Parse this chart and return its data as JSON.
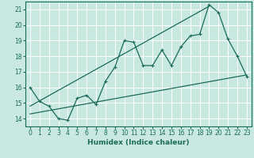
{
  "title": "",
  "xlabel": "Humidex (Indice chaleur)",
  "xlim": [
    -0.5,
    23.5
  ],
  "ylim": [
    13.5,
    21.5
  ],
  "yticks": [
    14,
    15,
    16,
    17,
    18,
    19,
    20,
    21
  ],
  "xticks": [
    0,
    1,
    2,
    3,
    4,
    5,
    6,
    7,
    8,
    9,
    10,
    11,
    12,
    13,
    14,
    15,
    16,
    17,
    18,
    19,
    20,
    21,
    22,
    23
  ],
  "bg_color": "#c8e8e0",
  "grid_color": "#ffffff",
  "line_color": "#1a6b5a",
  "line1_x": [
    0,
    1,
    2,
    3,
    4,
    5,
    6,
    7,
    8,
    9,
    10,
    11,
    12,
    13,
    14,
    15,
    16,
    17,
    18,
    19,
    20,
    21,
    22,
    23
  ],
  "line1_y": [
    16.0,
    15.1,
    14.8,
    14.0,
    13.9,
    15.3,
    15.5,
    14.9,
    16.4,
    17.3,
    19.0,
    18.9,
    17.4,
    17.4,
    18.4,
    17.4,
    18.6,
    19.3,
    19.4,
    21.3,
    20.8,
    19.1,
    18.0,
    16.7
  ],
  "line2_x": [
    0,
    23
  ],
  "line2_y": [
    14.3,
    16.8
  ],
  "line3_x": [
    0,
    19
  ],
  "line3_y": [
    14.8,
    21.2
  ],
  "xlabel_fontsize": 6.5,
  "tick_fontsize": 5.5,
  "linewidth": 0.9,
  "marker_size": 3.0
}
